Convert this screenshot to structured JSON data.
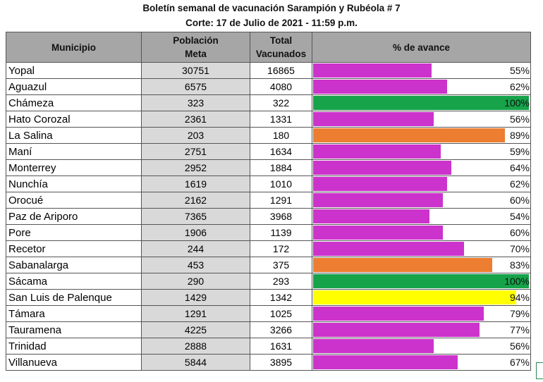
{
  "title": "Boletín semanal de vacunación Sarampión y Rubéola # 7",
  "subtitle": "Corte: 17 de Julio de 2021 - 11:59 p.m.",
  "headers": {
    "municipio": "Municipio",
    "poblacion_l1": "Población",
    "poblacion_l2": "Meta",
    "total_l1": "Total",
    "total_l2": "Vacunados",
    "avance": "% de avance"
  },
  "colors": {
    "magenta": "#cc33cc",
    "green": "#16a34a",
    "orange": "#ed7d31",
    "yellow": "#ffff00",
    "header_gray": "#a6a6a6",
    "meta_gray": "#d9d9d9"
  },
  "rows": [
    {
      "municipio": "Yopal",
      "poblacion": "30751",
      "vacunados": "16865",
      "avance": "55%",
      "fraction": 0.55,
      "color": "magenta"
    },
    {
      "municipio": "Aguazul",
      "poblacion": "6575",
      "vacunados": "4080",
      "avance": "62%",
      "fraction": 0.62,
      "color": "magenta"
    },
    {
      "municipio": "Chámeza",
      "poblacion": "323",
      "vacunados": "322",
      "avance": "100%",
      "fraction": 1.0,
      "color": "green"
    },
    {
      "municipio": "Hato Corozal",
      "poblacion": "2361",
      "vacunados": "1331",
      "avance": "56%",
      "fraction": 0.56,
      "color": "magenta"
    },
    {
      "municipio": "La Salina",
      "poblacion": "203",
      "vacunados": "180",
      "avance": "89%",
      "fraction": 0.89,
      "color": "orange"
    },
    {
      "municipio": "Maní",
      "poblacion": "2751",
      "vacunados": "1634",
      "avance": "59%",
      "fraction": 0.59,
      "color": "magenta"
    },
    {
      "municipio": "Monterrey",
      "poblacion": "2952",
      "vacunados": "1884",
      "avance": "64%",
      "fraction": 0.64,
      "color": "magenta"
    },
    {
      "municipio": "Nunchía",
      "poblacion": "1619",
      "vacunados": "1010",
      "avance": "62%",
      "fraction": 0.62,
      "color": "magenta"
    },
    {
      "municipio": "Orocué",
      "poblacion": "2162",
      "vacunados": "1291",
      "avance": "60%",
      "fraction": 0.6,
      "color": "magenta"
    },
    {
      "municipio": "Paz de Ariporo",
      "poblacion": "7365",
      "vacunados": "3968",
      "avance": "54%",
      "fraction": 0.54,
      "color": "magenta"
    },
    {
      "municipio": "Pore",
      "poblacion": "1906",
      "vacunados": "1139",
      "avance": "60%",
      "fraction": 0.6,
      "color": "magenta"
    },
    {
      "municipio": "Recetor",
      "poblacion": "244",
      "vacunados": "172",
      "avance": "70%",
      "fraction": 0.7,
      "color": "magenta"
    },
    {
      "municipio": "Sabanalarga",
      "poblacion": "453",
      "vacunados": "375",
      "avance": "83%",
      "fraction": 0.83,
      "color": "orange"
    },
    {
      "municipio": "Sácama",
      "poblacion": "290",
      "vacunados": "293",
      "avance": "100%",
      "fraction": 1.0,
      "color": "green"
    },
    {
      "municipio": "San Luis de Palenque",
      "poblacion": "1429",
      "vacunados": "1342",
      "avance": "94%",
      "fraction": 0.94,
      "color": "yellow"
    },
    {
      "municipio": "Támara",
      "poblacion": "1291",
      "vacunados": "1025",
      "avance": "79%",
      "fraction": 0.79,
      "color": "magenta"
    },
    {
      "municipio": "Tauramena",
      "poblacion": "4225",
      "vacunados": "3266",
      "avance": "77%",
      "fraction": 0.77,
      "color": "magenta"
    },
    {
      "municipio": "Trinidad",
      "poblacion": "2888",
      "vacunados": "1631",
      "avance": "56%",
      "fraction": 0.56,
      "color": "magenta"
    },
    {
      "municipio": "Villanueva",
      "poblacion": "5844",
      "vacunados": "3895",
      "avance": "67%",
      "fraction": 0.67,
      "color": "magenta"
    }
  ]
}
